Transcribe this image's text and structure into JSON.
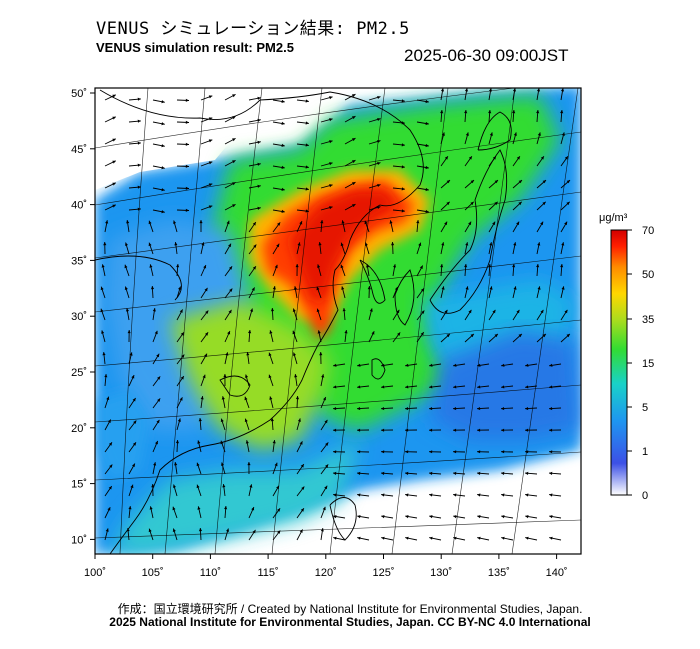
{
  "title_jp": "VENUS シミュレーション結果: PM2.5",
  "title_en": "VENUS simulation result: PM2.5",
  "datetime": "2025-06-30 09:00JST",
  "x_ticks": [
    "100˚",
    "105˚",
    "110˚",
    "115˚",
    "120˚",
    "125˚",
    "130˚",
    "135˚",
    "140˚"
  ],
  "y_ticks": [
    "50˚",
    "45˚",
    "40˚",
    "35˚",
    "30˚",
    "25˚",
    "20˚",
    "15˚",
    "10˚"
  ],
  "colorbar": {
    "unit": "μg/m³",
    "labels": [
      "70",
      "50",
      "35",
      "15",
      "5",
      "1",
      "0"
    ],
    "colors": [
      "#ffffff",
      "#3c50e6",
      "#1e96f0",
      "#19d2c8",
      "#32dc32",
      "#aadc1e",
      "#ffd700",
      "#ff8c00",
      "#ff1e00",
      "#d20000"
    ]
  },
  "credit_line1": "作成：国立環境研究所 / Created by National Institute for Environmental Studies, Japan.",
  "credit_line2": "2025 National Institute for Environmental Studies, Japan. CC BY-NC 4.0 International"
}
